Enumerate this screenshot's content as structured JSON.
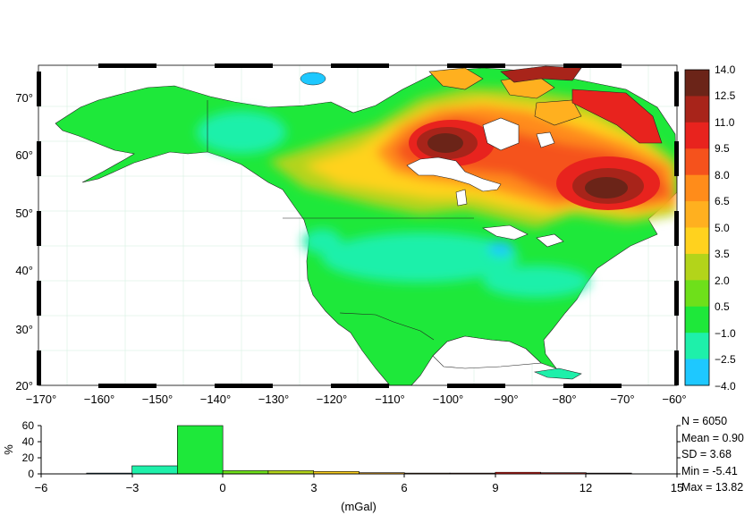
{
  "map": {
    "lon_ticks": [
      "−170°",
      "−160°",
      "−150°",
      "−140°",
      "−130°",
      "−120°",
      "−110°",
      "−100°",
      "−90°",
      "−80°",
      "−70°",
      "−60°"
    ],
    "lat_ticks": [
      "20°",
      "30°",
      "40°",
      "50°",
      "60°",
      "70°"
    ],
    "lon_range": [
      -170,
      -60
    ],
    "lat_range": [
      20,
      75
    ]
  },
  "colorbar": {
    "labels": [
      "14.0",
      "12.5",
      "11.0",
      "9.5",
      "8.0",
      "6.5",
      "5.0",
      "3.5",
      "2.0",
      "0.5",
      "−1.0",
      "−2.5",
      "−4.0"
    ],
    "colors": [
      "#6b2418",
      "#a8241a",
      "#e8231e",
      "#f5521c",
      "#ff8c1a",
      "#ffb01f",
      "#ffd21e",
      "#b3d41a",
      "#6ee01a",
      "#1ee83a",
      "#1ef0aa",
      "#1ec8ff"
    ]
  },
  "histogram": {
    "ylabel": "%",
    "xlabel": "(mGal)",
    "x_ticks": [
      "−6",
      "−3",
      "0",
      "3",
      "6",
      "9",
      "12",
      "15"
    ],
    "y_ticks": [
      "0",
      "20",
      "40",
      "60"
    ]
  },
  "stats": {
    "n": "N =  6050",
    "mean": "Mean = 0.90",
    "sd": "SD = 3.68",
    "min": "Min = -5.41",
    "max": "Max = 13.82"
  },
  "chart_data": {
    "type": "bar",
    "title": "",
    "xlabel": "(mGal)",
    "ylabel": "%",
    "xlim": [
      -6,
      15
    ],
    "ylim": [
      0,
      60
    ],
    "bin_edges": [
      -4.5,
      -3,
      -1.5,
      0,
      1.5,
      3,
      4.5,
      6,
      7.5,
      9,
      10.5,
      12,
      13.5
    ],
    "values": [
      1,
      10,
      60,
      4,
      4,
      3,
      1.5,
      1,
      1,
      2,
      1.5,
      1
    ],
    "colors": [
      "#1ec8ff",
      "#1ef0aa",
      "#1ee83a",
      "#6ee01a",
      "#b3d41a",
      "#ffd21e",
      "#ffb01f",
      "#ff8c1a",
      "#f5521c",
      "#e8231e",
      "#a8241a",
      "#6b2418"
    ]
  }
}
